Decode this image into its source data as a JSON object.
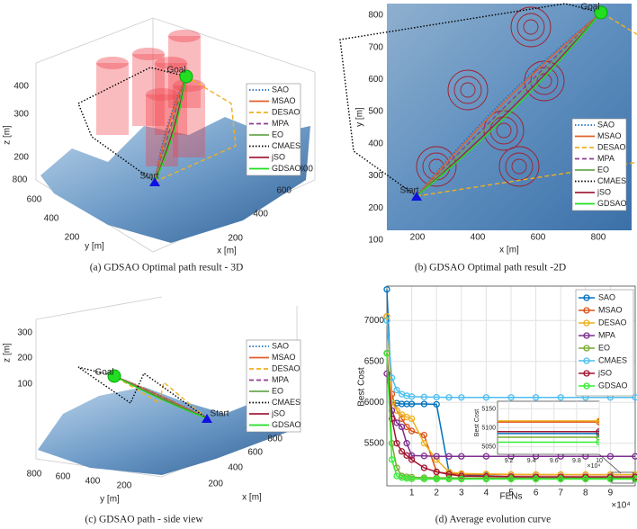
{
  "path_legend": [
    {
      "name": "SAO",
      "color": "#1f6fc5",
      "style": "dotted"
    },
    {
      "name": "MSAO",
      "color": "#e0602a",
      "style": "solid"
    },
    {
      "name": "DESAO",
      "color": "#f0b020",
      "style": "dashed"
    },
    {
      "name": "MPA",
      "color": "#8e3b94",
      "style": "dashed"
    },
    {
      "name": "EO",
      "color": "#6aa84f",
      "style": "solid"
    },
    {
      "name": "CMAES",
      "color": "#000000",
      "style": "dotted"
    },
    {
      "name": "jSO",
      "color": "#a0203c",
      "style": "solid"
    },
    {
      "name": "GDSAO",
      "color": "#22dd22",
      "style": "solid"
    }
  ],
  "panels": {
    "a": {
      "caption": "(a)  GDSAO Optimal path result - 3D",
      "zlabel": "z [m]",
      "ylabel": "y [m]",
      "xlabel": "x [m]",
      "zticks": [
        400,
        300,
        200
      ],
      "yticks": [
        800,
        600,
        400,
        200
      ],
      "xticks": [
        200,
        400,
        600,
        800
      ],
      "start": "Start",
      "goal": "Goal"
    },
    "b": {
      "caption": "(b)  GDSAO Optimal path result -2D",
      "ylabel": "y [m]",
      "xlabel": "x [m]",
      "yticks": [
        800,
        700,
        600,
        500,
        400,
        300,
        200,
        100
      ],
      "xticks": [
        200,
        400,
        600,
        800
      ],
      "start": "Start",
      "goal": "Goal"
    },
    "c": {
      "caption": "(c)  GDSAO path - side view",
      "zlabel": "z [m]",
      "ylabel": "y [m]",
      "xlabel": "x [m]",
      "zticks": [
        300,
        200,
        100
      ],
      "yticks": [
        800,
        600,
        400,
        200
      ],
      "xticks": [
        200,
        400,
        600,
        800
      ],
      "start": "Start",
      "goal": "Goal"
    }
  },
  "chart_data": {
    "type": "line",
    "caption": "(d)  Average evolution curve",
    "xlabel": "FENs",
    "ylabel": "Best Cost",
    "x_multiplier": "×10⁴",
    "x": [
      0,
      2000,
      4000,
      6000,
      8000,
      10000,
      15000,
      20000,
      25000,
      30000,
      40000,
      50000,
      60000,
      70000,
      80000,
      90000,
      100000
    ],
    "xlim": [
      0,
      100000
    ],
    "xticks": [
      {
        "value": 10000,
        "label": "1"
      },
      {
        "value": 20000,
        "label": "2"
      },
      {
        "value": 30000,
        "label": "3"
      },
      {
        "value": 40000,
        "label": "4"
      },
      {
        "value": 50000,
        "label": "5"
      },
      {
        "value": 60000,
        "label": "6"
      },
      {
        "value": 70000,
        "label": "7"
      },
      {
        "value": 80000,
        "label": "8"
      },
      {
        "value": 90000,
        "label": "9"
      }
    ],
    "ylim": [
      4980,
      7420
    ],
    "yticks": [
      5500,
      6000,
      6500,
      7000
    ],
    "grid": true,
    "legend": "upper right",
    "series": [
      {
        "name": "SAO",
        "color": "#0072bd",
        "values": [
          7380,
          6000,
          5990,
          5980,
          5980,
          5980,
          5980,
          5975,
          5150,
          5120,
          5100,
          5090,
          5085,
          5085,
          5085,
          5085,
          5085
        ]
      },
      {
        "name": "MSAO",
        "color": "#d95319",
        "values": [
          7050,
          6100,
          5900,
          5800,
          5700,
          5650,
          5600,
          5150,
          5130,
          5120,
          5118,
          5116,
          5115,
          5115,
          5115,
          5115,
          5115
        ]
      },
      {
        "name": "DESAO",
        "color": "#edb120",
        "values": [
          7050,
          6000,
          5900,
          5850,
          5820,
          5800,
          5500,
          5300,
          5150,
          5130,
          5125,
          5120,
          5119,
          5118,
          5118,
          5118,
          5118
        ]
      },
      {
        "name": "MPA",
        "color": "#7e2f8e",
        "values": [
          6350,
          5900,
          5750,
          5700,
          5500,
          5350,
          5345,
          5340,
          5340,
          5340,
          5340,
          5340,
          5340,
          5340,
          5340,
          5340,
          5340
        ]
      },
      {
        "name": "EO",
        "color": "#77ac30",
        "values": [
          6600,
          5500,
          5200,
          5100,
          5090,
          5085,
          5080,
          5078,
          5077,
          5076,
          5075,
          5075,
          5075,
          5075,
          5075,
          5075,
          5075
        ]
      },
      {
        "name": "CMAES",
        "color": "#4dbeee",
        "values": [
          7000,
          6300,
          6150,
          6100,
          6080,
          6070,
          6065,
          6062,
          6060,
          6060,
          6060,
          6060,
          6060,
          6060,
          6060,
          6060,
          6060
        ]
      },
      {
        "name": "jSO",
        "color": "#a2142f",
        "values": [
          6600,
          5800,
          5500,
          5400,
          5350,
          5300,
          5200,
          5150,
          5120,
          5100,
          5095,
          5092,
          5090,
          5090,
          5090,
          5090,
          5090
        ]
      },
      {
        "name": "GDSAO",
        "color": "#33ee33",
        "values": [
          6600,
          5300,
          5100,
          5080,
          5070,
          5065,
          5063,
          5062,
          5062,
          5062,
          5062,
          5062,
          5062,
          5062,
          5062,
          5062,
          5062
        ]
      }
    ],
    "inset": {
      "ylabel": "Best Cost",
      "x_multiplier": "×10⁴",
      "xlim": [
        91000,
        100000
      ],
      "xticks": [
        {
          "value": 92000,
          "label": "9.2"
        },
        {
          "value": 94000,
          "label": "9.4"
        },
        {
          "value": 96000,
          "label": "9.6"
        },
        {
          "value": 98000,
          "label": "9.8"
        },
        {
          "value": 100000,
          "label": "10"
        }
      ],
      "ylim": [
        5030,
        5170
      ],
      "yticks": [
        5050,
        5100,
        5150
      ]
    }
  }
}
